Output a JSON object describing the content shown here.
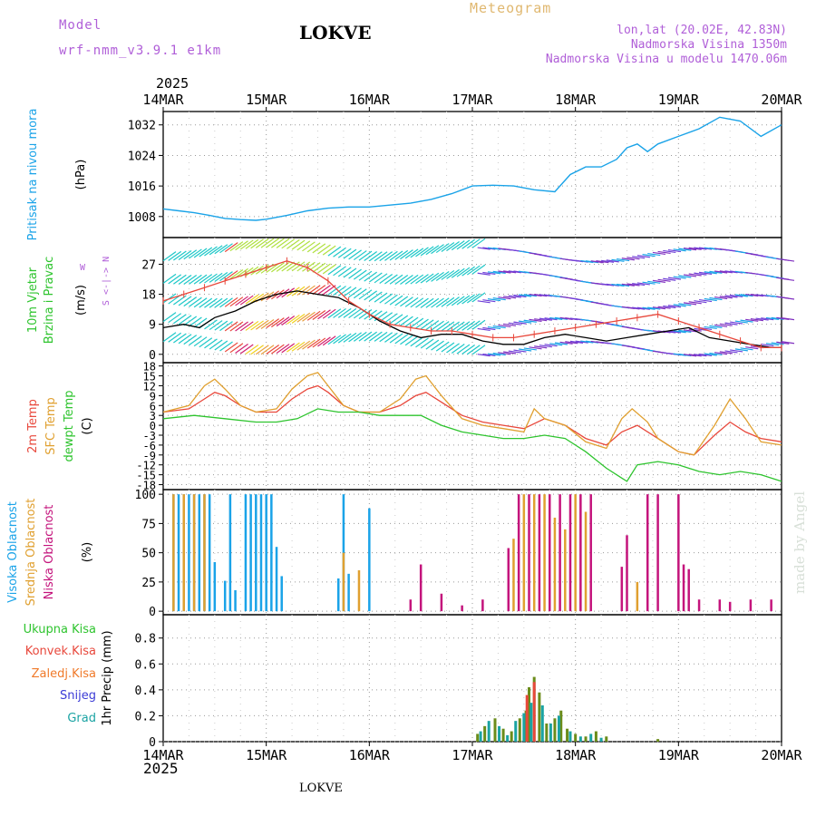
{
  "header": {
    "model_label": "Model",
    "model_name": "wrf-nmm_v3.9.1 e1km",
    "station": "LOKVE",
    "product": "Meteogram",
    "coords": "lon,lat (20.02E, 42.83N)",
    "elevation": "Nadmorska Visina 1350m",
    "model_elevation": "Nadmorska Visina u modelu 1470.06m",
    "year": "2025",
    "footer_station": "LOKVE",
    "watermark": "made by Angel"
  },
  "colors": {
    "pressure": "#1aa3e8",
    "wind_speed": "#e8483c",
    "wind_black": "#000000",
    "temp2m": "#e8483c",
    "sfc": "#e0a030",
    "dew": "#2ec42e",
    "high_cloud": "#1aa3e8",
    "mid_cloud": "#e0a030",
    "low_cloud": "#c4147c",
    "precip": "#6b8c1a",
    "conv": "#e8483c",
    "grad": "#1aa3a3",
    "snow": "#3b3bd6"
  },
  "chart_data": [
    {
      "type": "line",
      "panel": "pressure",
      "title_lines": [
        "Pritisak na nivou mora",
        "(hPa)"
      ],
      "yticks": [
        1008,
        1016,
        1024,
        1032
      ],
      "ylim": [
        1002.5,
        1035.5
      ],
      "x_days": [
        "14MAR",
        "15MAR",
        "16MAR",
        "17MAR",
        "18MAR",
        "19MAR",
        "20MAR"
      ],
      "series": [
        {
          "key": "pressure",
          "x": [
            0,
            0.15,
            0.3,
            0.45,
            0.6,
            0.75,
            0.9,
            1.0,
            1.2,
            1.4,
            1.6,
            1.8,
            2.0,
            2.2,
            2.4,
            2.6,
            2.8,
            3.0,
            3.2,
            3.4,
            3.6,
            3.8,
            3.95,
            4.1,
            4.25,
            4.4,
            4.5,
            4.6,
            4.7,
            4.8,
            5.0,
            5.2,
            5.4,
            5.6,
            5.8,
            6.0
          ],
          "y": [
            1010,
            1009.5,
            1009,
            1008.3,
            1007.5,
            1007.2,
            1007,
            1007.3,
            1008.3,
            1009.5,
            1010.2,
            1010.5,
            1010.5,
            1011,
            1011.5,
            1012.5,
            1014,
            1016,
            1016.2,
            1016,
            1015,
            1014.5,
            1019,
            1021,
            1021,
            1023,
            1026,
            1027,
            1025,
            1027,
            1029,
            1031,
            1034,
            1033,
            1029,
            1032
          ]
        }
      ]
    },
    {
      "type": "line",
      "panel": "wind",
      "title_lines": [
        "10m Vjetar",
        "Brzina i Pravac",
        "(m/s)"
      ],
      "yticks": [
        0,
        9,
        18,
        27
      ],
      "ylim": [
        -2.5,
        35
      ],
      "series": [
        {
          "key": "wind_black",
          "x": [
            0,
            0.2,
            0.35,
            0.5,
            0.7,
            0.9,
            1.1,
            1.3,
            1.5,
            1.7,
            1.9,
            2.1,
            2.3,
            2.5,
            2.7,
            2.9,
            3.1,
            3.3,
            3.5,
            3.7,
            3.9,
            4.1,
            4.3,
            4.5,
            4.7,
            4.9,
            5.1,
            5.3,
            5.5,
            5.7,
            5.9,
            6.0
          ],
          "y": [
            8,
            9,
            8,
            11,
            13,
            16,
            18,
            19,
            18,
            17,
            14,
            10,
            7,
            5,
            6,
            6,
            4,
            3,
            3,
            5,
            6,
            5,
            4,
            5,
            6,
            7,
            8,
            5,
            4,
            3,
            2,
            2
          ]
        },
        {
          "key": "wind_speed",
          "x": [
            0,
            0.2,
            0.4,
            0.6,
            0.8,
            1.0,
            1.2,
            1.4,
            1.6,
            1.8,
            2.0,
            2.2,
            2.4,
            2.6,
            2.8,
            3.0,
            3.2,
            3.4,
            3.6,
            3.8,
            4.0,
            4.2,
            4.4,
            4.6,
            4.8,
            5.0,
            5.2,
            5.4,
            5.6,
            5.8,
            6.0
          ],
          "y": [
            16,
            18,
            20,
            22,
            24,
            26,
            28,
            26,
            22,
            16,
            12,
            9,
            8,
            7,
            7,
            6,
            5,
            5,
            6,
            7,
            8,
            9,
            10,
            11,
            12,
            10,
            8,
            6,
            4,
            2,
            2
          ]
        }
      ]
    },
    {
      "type": "line",
      "panel": "temperature",
      "title_lines": [
        "2m Temp",
        "SFC Temp",
        "dewpt Temp",
        "(C)"
      ],
      "yticks": [
        -18,
        -15,
        -12,
        -9,
        -6,
        -3,
        0,
        3,
        6,
        9,
        12,
        15,
        18
      ],
      "ylim": [
        -19.5,
        19
      ],
      "series": [
        {
          "key": "temp2m",
          "x": [
            0,
            0.25,
            0.4,
            0.5,
            0.6,
            0.75,
            0.9,
            1.1,
            1.25,
            1.4,
            1.5,
            1.6,
            1.75,
            1.9,
            2.1,
            2.3,
            2.45,
            2.55,
            2.7,
            2.9,
            3.1,
            3.3,
            3.5,
            3.7,
            3.9,
            4.1,
            4.3,
            4.45,
            4.6,
            4.8,
            5.0,
            5.15,
            5.35,
            5.5,
            5.65,
            5.8,
            6.0
          ],
          "y": [
            4,
            5,
            8,
            10,
            9,
            6,
            4,
            4,
            8,
            11,
            12,
            10,
            6,
            4,
            4,
            6,
            9,
            10,
            7,
            3,
            1,
            0,
            -1,
            2,
            0,
            -4,
            -6,
            -2,
            0,
            -4,
            -8,
            -9,
            -3,
            1,
            -2,
            -4,
            -5
          ]
        },
        {
          "key": "sfc",
          "x": [
            0,
            0.25,
            0.4,
            0.5,
            0.6,
            0.75,
            0.9,
            1.1,
            1.25,
            1.4,
            1.5,
            1.6,
            1.75,
            1.9,
            2.1,
            2.3,
            2.45,
            2.55,
            2.7,
            2.9,
            3.1,
            3.3,
            3.5,
            3.6,
            3.7,
            3.9,
            4.1,
            4.3,
            4.45,
            4.55,
            4.7,
            4.8,
            5.0,
            5.15,
            5.35,
            5.5,
            5.65,
            5.8,
            6.0
          ],
          "y": [
            4,
            6,
            12,
            14,
            11,
            6,
            4,
            5,
            11,
            15,
            16,
            12,
            6,
            4,
            4,
            8,
            14,
            15,
            9,
            2,
            0,
            -1,
            -2,
            5,
            2,
            0,
            -5,
            -7,
            2,
            5,
            1,
            -4,
            -8,
            -9,
            0,
            8,
            2,
            -5,
            -6
          ]
        },
        {
          "key": "dew",
          "x": [
            0,
            0.3,
            0.6,
            0.9,
            1.1,
            1.3,
            1.5,
            1.7,
            1.9,
            2.1,
            2.3,
            2.5,
            2.7,
            2.9,
            3.1,
            3.3,
            3.5,
            3.7,
            3.9,
            4.1,
            4.3,
            4.45,
            4.5,
            4.6,
            4.8,
            5.0,
            5.2,
            5.4,
            5.6,
            5.8,
            6.0
          ],
          "y": [
            2,
            3,
            2,
            1,
            1,
            2,
            5,
            4,
            4,
            3,
            3,
            3,
            0,
            -2,
            -3,
            -4,
            -4,
            -3,
            -4,
            -8,
            -13,
            -16,
            -17,
            -12,
            -11,
            -12,
            -14,
            -15,
            -14,
            -15,
            -17
          ]
        }
      ]
    },
    {
      "type": "bar",
      "panel": "clouds",
      "title_lines": [
        "Visoka Oblacnost",
        "Srednja Oblacnost",
        "Niska Oblacnost",
        "(%)"
      ],
      "yticks": [
        0,
        25,
        50,
        75,
        100
      ],
      "ylim": [
        -3,
        104
      ],
      "series": [
        {
          "key": "high_cloud",
          "x": [
            0.1,
            0.15,
            0.2,
            0.25,
            0.3,
            0.35,
            0.4,
            0.45,
            0.5,
            0.6,
            0.65,
            0.7,
            0.8,
            0.85,
            0.9,
            0.95,
            1.0,
            1.05,
            1.1,
            1.15,
            1.7,
            1.75,
            1.8,
            2.0
          ],
          "y": [
            100,
            100,
            100,
            100,
            100,
            100,
            100,
            100,
            42,
            26,
            100,
            18,
            100,
            100,
            100,
            100,
            100,
            100,
            55,
            30,
            28,
            100,
            32,
            88
          ]
        },
        {
          "key": "mid_cloud",
          "x": [
            0.1,
            0.2,
            0.3,
            0.4,
            1.75,
            1.9,
            3.4,
            3.5,
            3.6,
            3.7,
            3.8,
            3.9,
            4.0,
            4.1,
            4.6
          ],
          "y": [
            100,
            100,
            100,
            100,
            50,
            35,
            62,
            100,
            100,
            100,
            80,
            70,
            100,
            85,
            25
          ]
        },
        {
          "key": "low_cloud",
          "x": [
            2.4,
            2.5,
            2.7,
            2.9,
            3.1,
            3.35,
            3.45,
            3.55,
            3.65,
            3.75,
            3.85,
            3.95,
            4.05,
            4.15,
            4.45,
            4.5,
            4.7,
            4.8,
            5.0,
            5.05,
            5.1,
            5.2,
            5.4,
            5.5,
            5.7,
            5.9
          ],
          "y": [
            10,
            40,
            15,
            5,
            10,
            54,
            100,
            100,
            100,
            100,
            100,
            100,
            100,
            100,
            38,
            65,
            100,
            100,
            100,
            40,
            36,
            10,
            10,
            8,
            10,
            10
          ]
        }
      ]
    },
    {
      "type": "bar",
      "panel": "precip",
      "title_lines": [
        "Ukupna Kisa",
        "Konvek.Kisa",
        "Zaledj.Kisa",
        "Snijeg",
        "Grad",
        "1hr Precip (mm)"
      ],
      "yticks": [
        0,
        0.2,
        0.4,
        0.6,
        0.8
      ],
      "ylim": [
        0,
        0.98
      ],
      "series": [
        {
          "key": "precip",
          "x": [
            3.05,
            3.12,
            3.22,
            3.3,
            3.38,
            3.46,
            3.52,
            3.55,
            3.6,
            3.65,
            3.72,
            3.8,
            3.86,
            3.92,
            4.0,
            4.1,
            4.2,
            4.3,
            4.8
          ],
          "y": [
            0.06,
            0.12,
            0.18,
            0.1,
            0.08,
            0.18,
            0.24,
            0.42,
            0.5,
            0.38,
            0.14,
            0.18,
            0.24,
            0.1,
            0.06,
            0.04,
            0.08,
            0.04,
            0.02
          ]
        },
        {
          "key": "grad",
          "x": [
            3.08,
            3.16,
            3.26,
            3.34,
            3.42,
            3.5,
            3.57,
            3.68,
            3.76,
            3.84,
            3.95,
            4.05,
            4.15,
            4.25
          ],
          "y": [
            0.08,
            0.16,
            0.12,
            0.05,
            0.16,
            0.22,
            0.3,
            0.28,
            0.14,
            0.2,
            0.08,
            0.04,
            0.06,
            0.03
          ]
        },
        {
          "key": "conv",
          "x": [
            3.53,
            3.6
          ],
          "y": [
            0.36,
            0.46
          ]
        }
      ]
    }
  ]
}
